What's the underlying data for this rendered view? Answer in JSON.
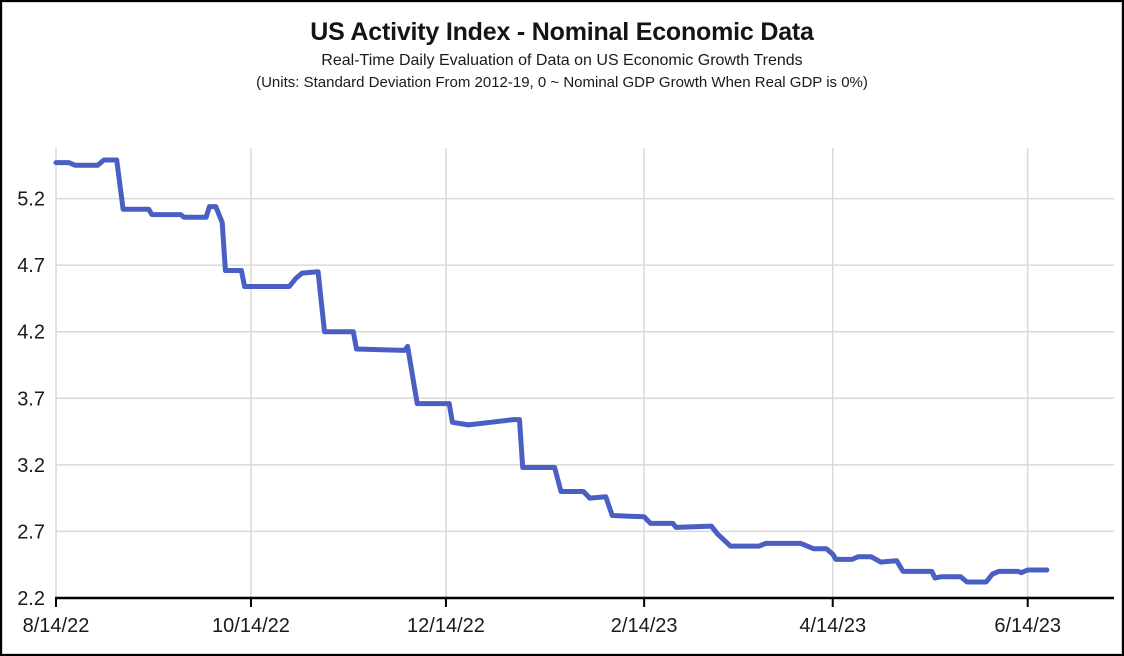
{
  "header": {
    "title": "US Activity Index - Nominal Economic Data",
    "subtitle": "Real-Time Daily Evaluation of Data on US Economic Growth Trends",
    "units_note": "(Units: Standard Deviation From 2012-19, 0 ~ Nominal GDP Growth When Real GDP is 0%)"
  },
  "colors": {
    "line": "#4a5fc4",
    "grid": "#d9d9d9",
    "axis": "#000000",
    "tick_label": "#1a1a1a",
    "background": "#ffffff"
  },
  "chart_data": {
    "type": "line",
    "title": "US Activity Index - Nominal Economic Data",
    "subtitle": "Real-Time Daily Evaluation of Data on US Economic Growth Trends",
    "units_note": "(Units: Standard Deviation From 2012-19, 0 ~ Nominal GDP Growth When Real GDP is 0%)",
    "grid": true,
    "legend_position": "none",
    "x_tick_labels": [
      "8/14/22",
      "10/14/22",
      "12/14/22",
      "2/14/23",
      "4/14/23",
      "6/14/23"
    ],
    "y_tick_labels": [
      "5.2",
      "4.7",
      "4.2",
      "3.7",
      "3.2",
      "2.7",
      "2.2"
    ],
    "ylim": [
      2.2,
      5.58
    ],
    "x_domain": [
      "8/14/22",
      "7/11/23"
    ],
    "series": [
      {
        "points": [
          [
            "8/14/22",
            5.47
          ],
          [
            "8/18/22",
            5.47
          ],
          [
            "8/20/22",
            5.45
          ],
          [
            "8/27/22",
            5.45
          ],
          [
            "8/29/22",
            5.49
          ],
          [
            "9/2/22",
            5.49
          ],
          [
            "9/4/22",
            5.12
          ],
          [
            "9/12/22",
            5.12
          ],
          [
            "9/13/22",
            5.08
          ],
          [
            "9/22/22",
            5.08
          ],
          [
            "9/23/22",
            5.06
          ],
          [
            "9/30/22",
            5.06
          ],
          [
            "10/1/22",
            5.14
          ],
          [
            "10/3/22",
            5.14
          ],
          [
            "10/5/22",
            5.02
          ],
          [
            "10/6/22",
            4.66
          ],
          [
            "10/11/22",
            4.66
          ],
          [
            "10/12/22",
            4.54
          ],
          [
            "10/26/22",
            4.54
          ],
          [
            "10/28/22",
            4.6
          ],
          [
            "10/30/22",
            4.64
          ],
          [
            "11/4/22",
            4.65
          ],
          [
            "11/6/22",
            4.2
          ],
          [
            "11/15/22",
            4.2
          ],
          [
            "11/16/22",
            4.07
          ],
          [
            "12/1/22",
            4.06
          ],
          [
            "12/2/22",
            4.09
          ],
          [
            "12/5/22",
            3.66
          ],
          [
            "12/15/22",
            3.66
          ],
          [
            "12/16/22",
            3.52
          ],
          [
            "12/21/22",
            3.5
          ],
          [
            "12/28/22",
            3.52
          ],
          [
            "1/4/23",
            3.54
          ],
          [
            "1/6/23",
            3.54
          ],
          [
            "1/7/23",
            3.18
          ],
          [
            "1/17/23",
            3.18
          ],
          [
            "1/19/23",
            3.0
          ],
          [
            "1/26/23",
            3.0
          ],
          [
            "1/28/23",
            2.95
          ],
          [
            "2/2/23",
            2.96
          ],
          [
            "2/4/23",
            2.82
          ],
          [
            "2/14/23",
            2.81
          ],
          [
            "2/16/23",
            2.76
          ],
          [
            "2/23/23",
            2.76
          ],
          [
            "2/24/23",
            2.73
          ],
          [
            "3/7/23",
            2.74
          ],
          [
            "3/9/23",
            2.68
          ],
          [
            "3/13/23",
            2.59
          ],
          [
            "3/22/23",
            2.59
          ],
          [
            "3/24/23",
            2.61
          ],
          [
            "4/4/23",
            2.61
          ],
          [
            "4/8/23",
            2.57
          ],
          [
            "4/12/23",
            2.57
          ],
          [
            "4/14/23",
            2.53
          ],
          [
            "4/15/23",
            2.49
          ],
          [
            "4/20/23",
            2.49
          ],
          [
            "4/22/23",
            2.51
          ],
          [
            "4/26/23",
            2.51
          ],
          [
            "4/29/23",
            2.47
          ],
          [
            "5/4/23",
            2.48
          ],
          [
            "5/6/23",
            2.4
          ],
          [
            "5/15/23",
            2.4
          ],
          [
            "5/16/23",
            2.35
          ],
          [
            "5/18/23",
            2.36
          ],
          [
            "5/24/23",
            2.36
          ],
          [
            "5/26/23",
            2.32
          ],
          [
            "6/1/23",
            2.32
          ],
          [
            "6/3/23",
            2.38
          ],
          [
            "6/5/23",
            2.4
          ],
          [
            "6/11/23",
            2.4
          ],
          [
            "6/12/23",
            2.39
          ],
          [
            "6/14/23",
            2.41
          ],
          [
            "6/20/23",
            2.41
          ]
        ]
      }
    ]
  }
}
